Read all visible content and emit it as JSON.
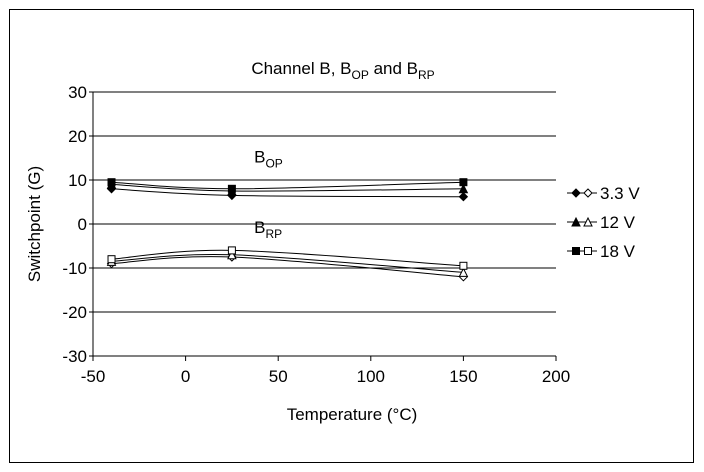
{
  "chart_data": {
    "type": "line",
    "title": {
      "main": "Channel B, B",
      "sub1": "OP",
      "mid": " and B",
      "sub2": "RP"
    },
    "xlabel": "Temperature (°C)",
    "ylabel": "Switchpoint (G)",
    "xlim": [
      -50,
      200
    ],
    "ylim": [
      -30,
      30
    ],
    "x_ticks": [
      -50,
      0,
      50,
      100,
      150,
      200
    ],
    "y_ticks": [
      -30,
      -20,
      -10,
      0,
      10,
      20,
      30
    ],
    "x_tick_labels": [
      "-50",
      "0",
      "50",
      "100",
      "150",
      "200"
    ],
    "y_tick_labels": [
      "-30",
      "-20",
      "-10",
      "0",
      "10",
      "20",
      "30"
    ],
    "grid": "horizontal",
    "legend_position": "right",
    "annotations": [
      {
        "base": "B",
        "sub": "OP",
        "x": 37,
        "y": 14
      },
      {
        "base": "B",
        "sub": "RP",
        "x": 37,
        "y": -2
      }
    ],
    "x": [
      -40,
      25,
      150
    ],
    "series": [
      {
        "name": "3.3 V",
        "group": "BOP",
        "marker": "diamond",
        "filled": true,
        "values": [
          8.0,
          6.5,
          6.2
        ]
      },
      {
        "name": "12 V",
        "group": "BOP",
        "marker": "triangle",
        "filled": true,
        "values": [
          9.0,
          7.5,
          8.0
        ]
      },
      {
        "name": "18 V",
        "group": "BOP",
        "marker": "square",
        "filled": true,
        "values": [
          9.5,
          8.0,
          9.5
        ]
      },
      {
        "name": "3.3 V",
        "group": "BRP",
        "marker": "diamond",
        "filled": false,
        "values": [
          -9.0,
          -7.5,
          -12.0
        ]
      },
      {
        "name": "12 V",
        "group": "BRP",
        "marker": "triangle",
        "filled": false,
        "values": [
          -8.5,
          -7.0,
          -11.0
        ]
      },
      {
        "name": "18 V",
        "group": "BRP",
        "marker": "square",
        "filled": false,
        "values": [
          -8.0,
          -6.0,
          -9.5
        ]
      }
    ],
    "legend": [
      {
        "label": "3.3 V",
        "marker": "diamond"
      },
      {
        "label": "12 V",
        "marker": "triangle"
      },
      {
        "label": "18 V",
        "marker": "square"
      }
    ]
  }
}
